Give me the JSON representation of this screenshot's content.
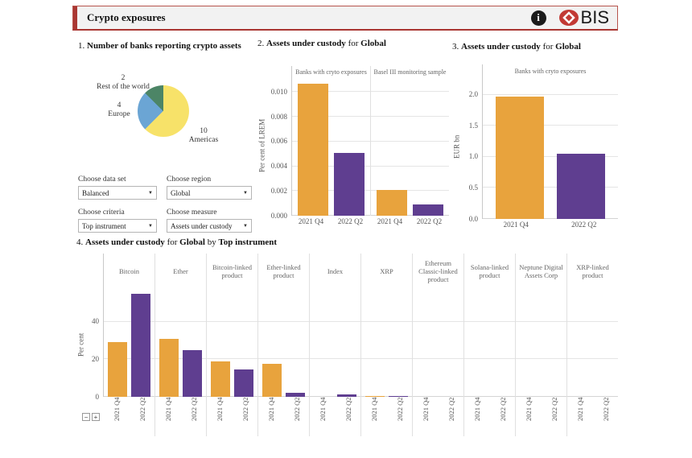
{
  "header": {
    "title": "Crypto exposures",
    "info_glyph": "i",
    "logo_text": "BIS"
  },
  "colors": {
    "accent_red": "#a93632",
    "logo_red": "#c23934",
    "series_2021q4": "#E8A33D",
    "series_2022q2": "#5F3E90",
    "pie_americas": "#F7E269",
    "pie_europe": "#6BA5D4",
    "pie_rest_of_world": "#4C8566"
  },
  "controls": {
    "data_set": {
      "label": "Choose data set",
      "value": "Balanced"
    },
    "region": {
      "label": "Choose region",
      "value": "Global"
    },
    "criteria": {
      "label": "Choose criteria",
      "value": "Top instrument"
    },
    "measure": {
      "label": "Choose measure",
      "value": "Assets under custody"
    }
  },
  "toolbar": {
    "zoom_out": "−",
    "zoom_in": "+"
  },
  "chart_data": [
    {
      "id": "banks-reporting-crypto-assets",
      "type": "pie",
      "num": "1.",
      "title": "Number of banks reporting crypto assets",
      "direction": "clockwise",
      "start_angle_deg": 0,
      "slices": [
        {
          "label": "Americas",
          "value": 10,
          "color": "#F7E269"
        },
        {
          "label": "Europe",
          "value": 4,
          "color": "#6BA5D4"
        },
        {
          "label": "Rest of the world",
          "value": 2,
          "color": "#4C8566"
        }
      ]
    },
    {
      "id": "assets-under-custody-per-cent-lrem",
      "type": "bar",
      "num": "2.",
      "title_measure": "Assets under custody",
      "title_for": "for",
      "title_region": "Global",
      "ylabel": "Per cent of LREM",
      "ymax": 0.0112,
      "grid": true,
      "yticks": [
        {
          "label": "0.000",
          "value": 0.0
        },
        {
          "label": "0.002",
          "value": 0.002
        },
        {
          "label": "0.004",
          "value": 0.004
        },
        {
          "label": "0.006",
          "value": 0.006
        },
        {
          "label": "0.008",
          "value": 0.008
        },
        {
          "label": "0.010",
          "value": 0.01
        }
      ],
      "categories": [
        "2021 Q4",
        "2022 Q2"
      ],
      "series_colors": [
        "#E8A33D",
        "#5F3E90"
      ],
      "facets": [
        {
          "header": "Banks with cryto exposures",
          "values": [
            0.0107,
            0.0051
          ]
        },
        {
          "header": "Basel III monitoring sample",
          "values": [
            0.0021,
            0.0009
          ]
        }
      ]
    },
    {
      "id": "assets-under-custody-eur-bn",
      "type": "bar",
      "num": "3.",
      "title_measure": "Assets under custody",
      "title_for": "for",
      "title_region": "Global",
      "ylabel": "EUR bn",
      "ymax": 2.28,
      "grid": true,
      "yticks": [
        {
          "label": "0.0",
          "value": 0.0
        },
        {
          "label": "0.5",
          "value": 0.5
        },
        {
          "label": "1.0",
          "value": 1.0
        },
        {
          "label": "1.5",
          "value": 1.5
        },
        {
          "label": "2.0",
          "value": 2.0
        }
      ],
      "categories": [
        "2021 Q4",
        "2022 Q2"
      ],
      "series_colors": [
        "#E8A33D",
        "#5F3E90"
      ],
      "facets": [
        {
          "header": "Banks with cryto exposures",
          "values": [
            1.97,
            1.05
          ]
        }
      ]
    },
    {
      "id": "assets-under-custody-by-top-instrument",
      "type": "bar",
      "num": "4.",
      "title_measure": "Assets under custody",
      "title_for": "for",
      "title_region": "Global",
      "title_by": "by",
      "title_criteria": "Top instrument",
      "ylabel": "Per cent",
      "ymax": 57.5,
      "grid": true,
      "yticks": [
        {
          "label": "0",
          "value": 0
        },
        {
          "label": "20",
          "value": 20
        },
        {
          "label": "40",
          "value": 40
        }
      ],
      "categories": [
        "2021 Q4",
        "2022 Q2"
      ],
      "series_colors": [
        "#E8A33D",
        "#5F3E90"
      ],
      "facets": [
        {
          "header": "Bitcoin",
          "values": [
            29,
            55
          ]
        },
        {
          "header": "Ether",
          "values": [
            31,
            25
          ]
        },
        {
          "header": "Bitcoin-linked product",
          "values": [
            19,
            14.5
          ]
        },
        {
          "header": "Ether-linked product",
          "values": [
            17.5,
            2
          ]
        },
        {
          "header": "Index",
          "values": [
            0,
            1.5
          ]
        },
        {
          "header": "XRP",
          "values": [
            0.4,
            0.3
          ]
        },
        {
          "header": "Ethereum Classic-linked product",
          "values": [
            0,
            0
          ]
        },
        {
          "header": "Solana-linked product",
          "values": [
            0,
            0
          ]
        },
        {
          "header": "Neptune Digital Assets Corp",
          "values": [
            0,
            0
          ]
        },
        {
          "header": "XRP-linked product",
          "values": [
            0,
            0
          ]
        }
      ]
    }
  ]
}
